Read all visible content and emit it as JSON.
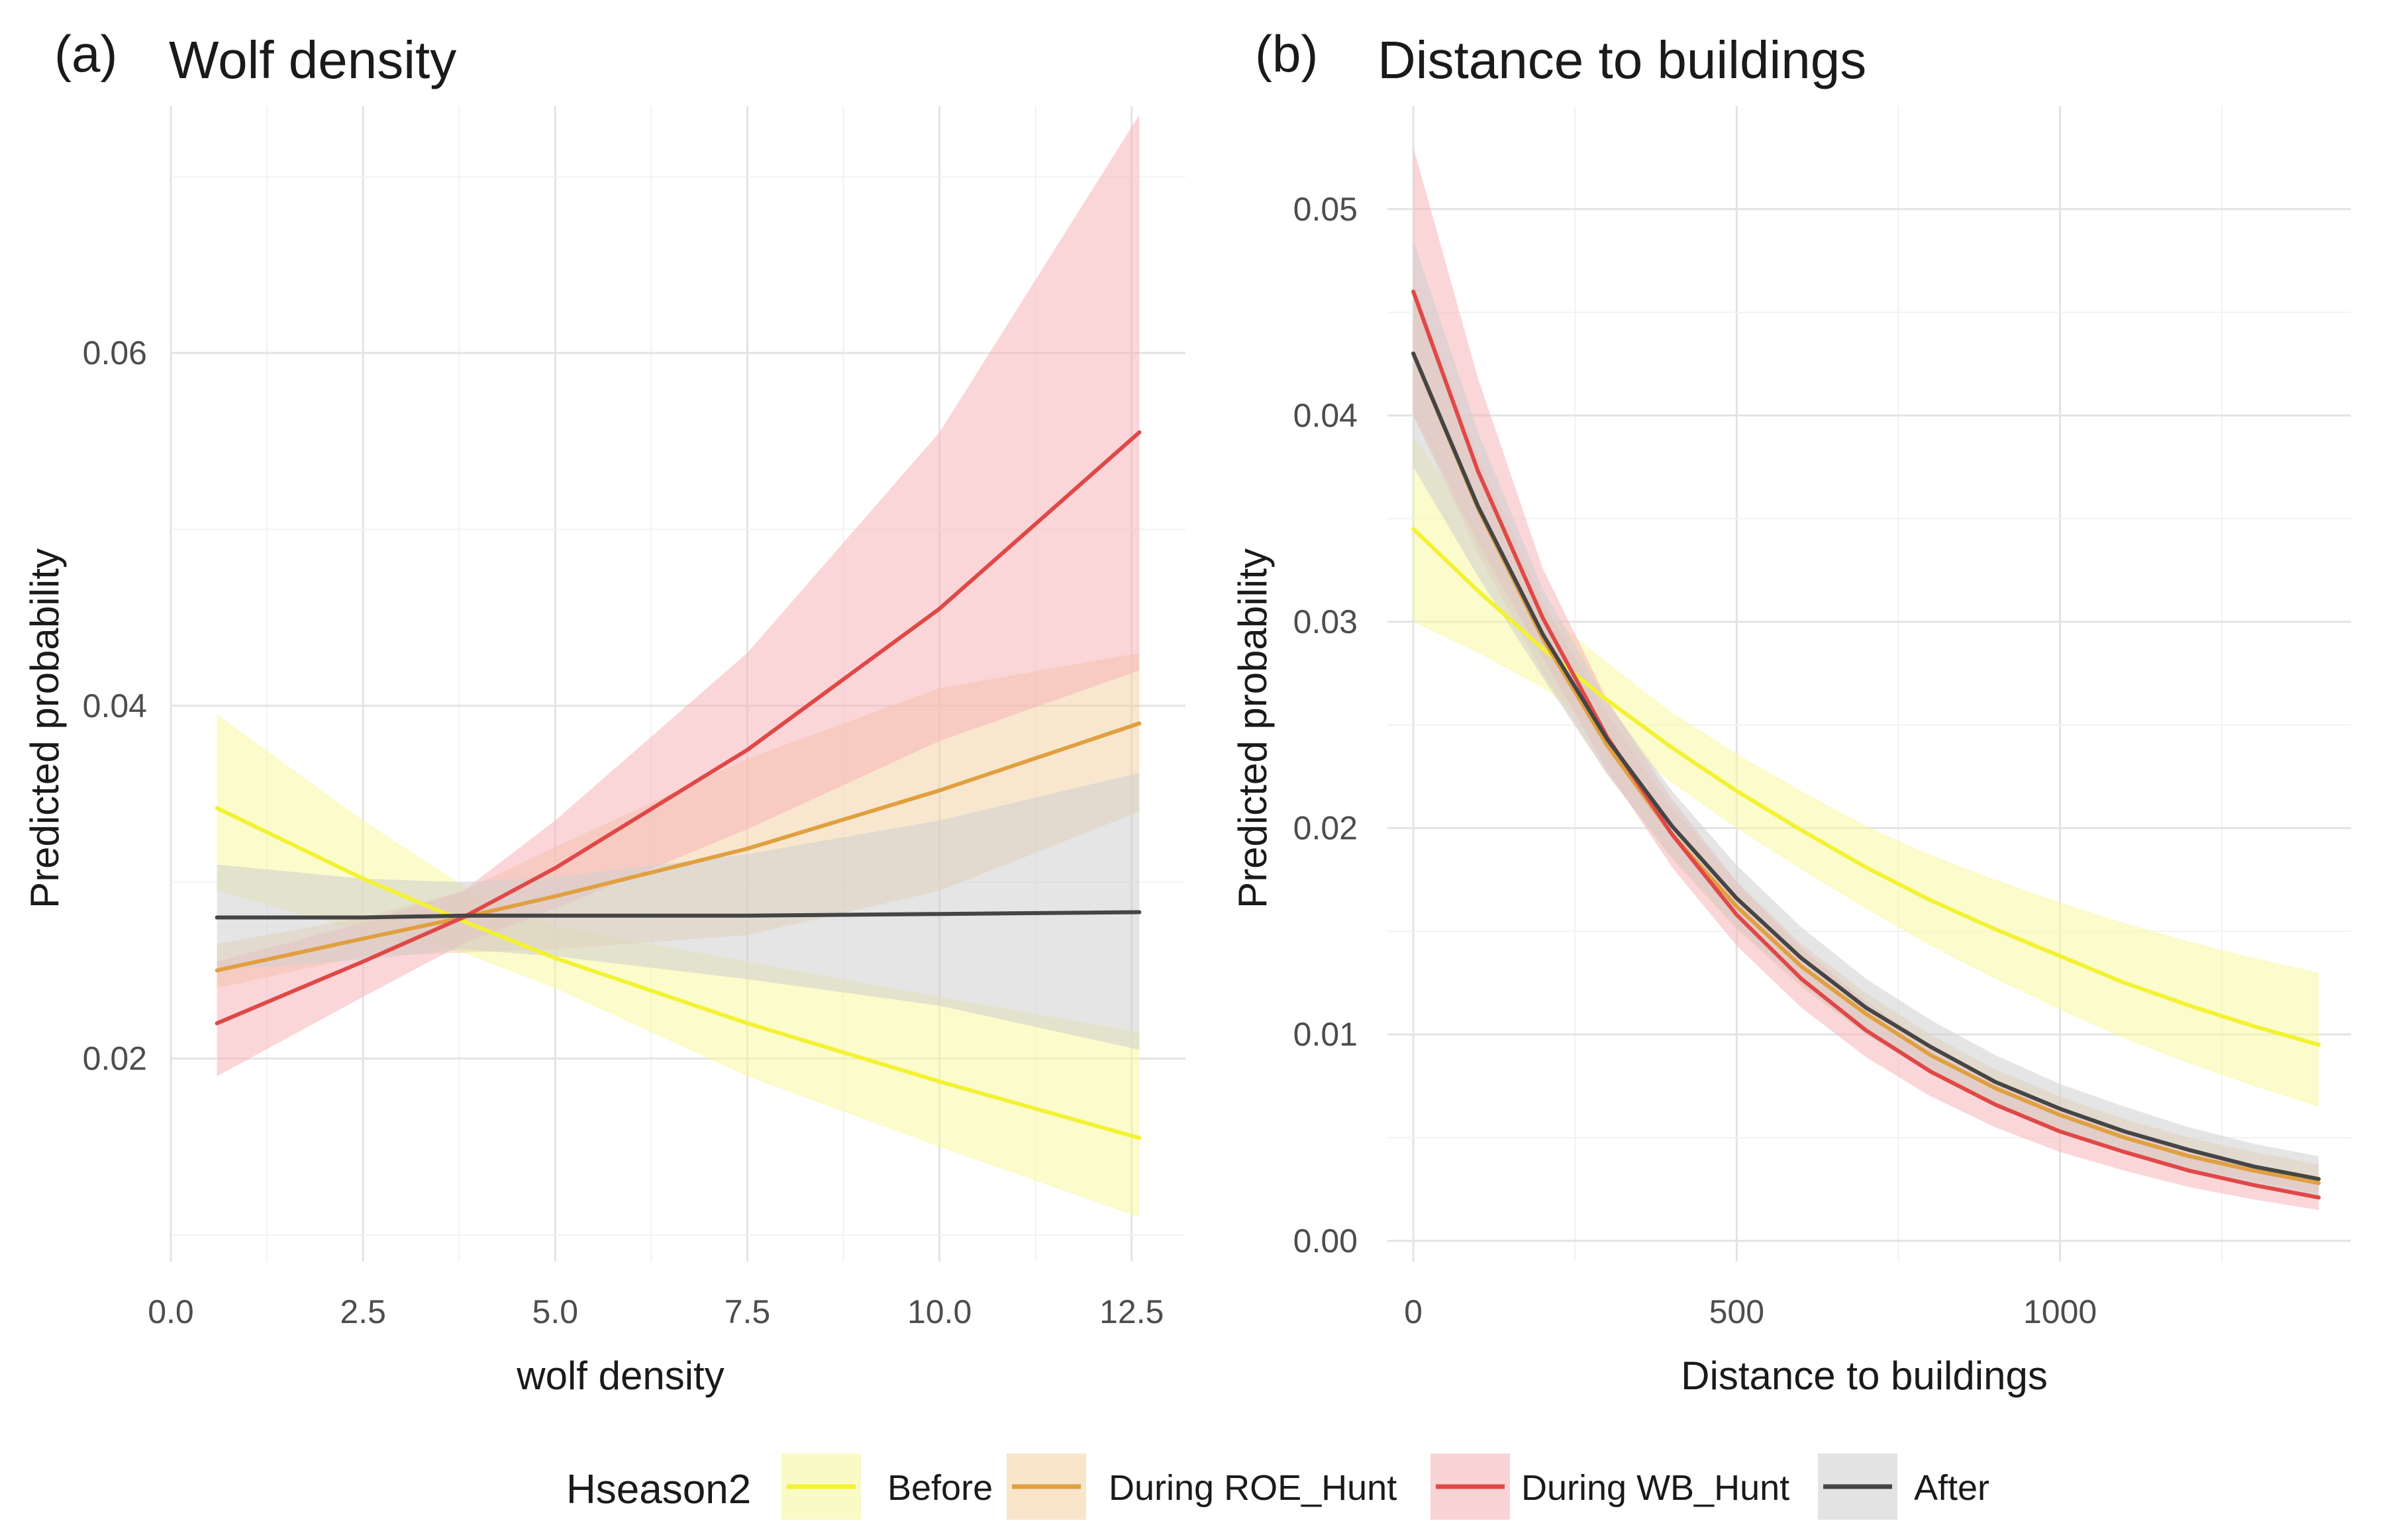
{
  "legend": {
    "title": "Hseason2",
    "items": [
      {
        "label": "Before",
        "color": "#f2f233",
        "fill": "#f7f7a0"
      },
      {
        "label": "During ROE_Hunt",
        "color": "#e0a040",
        "fill": "#f3d4a6"
      },
      {
        "label": "During WB_Hunt",
        "color": "#e04848",
        "fill": "#f7b5b8"
      },
      {
        "label": "After",
        "color": "#454545",
        "fill": "#d0d0d0"
      }
    ]
  },
  "chart_data": [
    {
      "type": "line",
      "panel_label": "(a)",
      "title": "Wolf density",
      "xlabel": "wolf density",
      "ylabel": "Predicted probability",
      "xlim": [
        0,
        13.2
      ],
      "ylim": [
        0.0085,
        0.074
      ],
      "xticks": [
        "0.0",
        "2.5",
        "5.0",
        "7.5",
        "10.0",
        "12.5"
      ],
      "yticks": [
        "0.02",
        "0.04",
        "0.06"
      ],
      "x": [
        0.6,
        2.5,
        3.8,
        5.0,
        7.5,
        10.0,
        12.6
      ],
      "series": [
        {
          "name": "Before",
          "values": [
            0.0342,
            0.0302,
            0.0278,
            0.0257,
            0.022,
            0.0187,
            0.0155
          ],
          "lower": [
            0.0295,
            0.0272,
            0.026,
            0.024,
            0.019,
            0.015,
            0.011
          ],
          "upper": [
            0.0395,
            0.0335,
            0.0298,
            0.0275,
            0.0255,
            0.0235,
            0.0215
          ]
        },
        {
          "name": "During ROE_Hunt",
          "values": [
            0.025,
            0.0268,
            0.028,
            0.0292,
            0.0319,
            0.0352,
            0.039
          ],
          "lower": [
            0.024,
            0.0258,
            0.026,
            0.0262,
            0.027,
            0.0295,
            0.034
          ],
          "upper": [
            0.0265,
            0.028,
            0.0295,
            0.032,
            0.037,
            0.041,
            0.043
          ]
        },
        {
          "name": "During WB_Hunt",
          "values": [
            0.022,
            0.0255,
            0.028,
            0.0308,
            0.0375,
            0.0455,
            0.0555
          ],
          "lower": [
            0.019,
            0.0235,
            0.0265,
            0.0285,
            0.033,
            0.038,
            0.042
          ],
          "upper": [
            0.0255,
            0.0277,
            0.0295,
            0.0335,
            0.043,
            0.0555,
            0.0735
          ]
        },
        {
          "name": "After",
          "values": [
            0.028,
            0.028,
            0.0281,
            0.0281,
            0.0281,
            0.0282,
            0.0283
          ],
          "lower": [
            0.025,
            0.0256,
            0.0262,
            0.0258,
            0.0245,
            0.023,
            0.0205
          ],
          "upper": [
            0.031,
            0.0302,
            0.03,
            0.0303,
            0.0316,
            0.0335,
            0.0362
          ]
        }
      ]
    },
    {
      "type": "line",
      "panel_label": "(b)",
      "title": "Distance to buildings",
      "xlabel": "Distance to buildings",
      "ylabel": "Predicted probability",
      "xlim": [
        -40,
        1450
      ],
      "ylim": [
        -0.001,
        0.055
      ],
      "xticks": [
        "0",
        "500",
        "1000"
      ],
      "yticks": [
        "0.00",
        "0.01",
        "0.02",
        "0.03",
        "0.04",
        "0.05"
      ],
      "x": [
        0,
        100,
        200,
        300,
        400,
        500,
        600,
        700,
        800,
        900,
        1000,
        1100,
        1200,
        1300,
        1400
      ],
      "series": [
        {
          "name": "Before",
          "values": [
            0.0345,
            0.0315,
            0.0287,
            0.0262,
            0.0239,
            0.0218,
            0.0199,
            0.0181,
            0.0165,
            0.0151,
            0.0138,
            0.0125,
            0.0114,
            0.0104,
            0.0095
          ],
          "lower": [
            0.03,
            0.0285,
            0.0268,
            0.0245,
            0.0222,
            0.02,
            0.018,
            0.0161,
            0.0143,
            0.0127,
            0.0112,
            0.0098,
            0.0086,
            0.0075,
            0.0065
          ],
          "upper": [
            0.039,
            0.0345,
            0.0306,
            0.028,
            0.0256,
            0.0236,
            0.0218,
            0.0201,
            0.0187,
            0.0175,
            0.0164,
            0.0154,
            0.0145,
            0.0137,
            0.013
          ]
        },
        {
          "name": "During ROE_Hunt",
          "values": [
            0.043,
            0.0355,
            0.0292,
            0.024,
            0.0197,
            0.0162,
            0.0133,
            0.011,
            0.009,
            0.0074,
            0.0061,
            0.005,
            0.0041,
            0.0034,
            0.0028
          ],
          "lower": [
            0.04,
            0.0333,
            0.0275,
            0.0226,
            0.0185,
            0.0151,
            0.0123,
            0.01,
            0.0082,
            0.0066,
            0.0054,
            0.0044,
            0.0035,
            0.0029,
            0.0023
          ],
          "upper": [
            0.0465,
            0.038,
            0.031,
            0.0255,
            0.021,
            0.0174,
            0.0144,
            0.012,
            0.01,
            0.0083,
            0.007,
            0.0059,
            0.005,
            0.0043,
            0.0037
          ]
        },
        {
          "name": "During WB_Hunt",
          "values": [
            0.046,
            0.0373,
            0.0302,
            0.0244,
            0.0197,
            0.0158,
            0.0127,
            0.0102,
            0.0082,
            0.0066,
            0.0053,
            0.0043,
            0.0034,
            0.0027,
            0.0021
          ],
          "lower": [
            0.04,
            0.0338,
            0.0283,
            0.0228,
            0.0181,
            0.0143,
            0.0113,
            0.0089,
            0.007,
            0.0055,
            0.0043,
            0.0034,
            0.0026,
            0.002,
            0.0015
          ],
          "upper": [
            0.053,
            0.0418,
            0.0326,
            0.0262,
            0.0214,
            0.0174,
            0.0142,
            0.0116,
            0.0095,
            0.0078,
            0.0064,
            0.0053,
            0.0044,
            0.0036,
            0.003
          ]
        },
        {
          "name": "After",
          "values": [
            0.043,
            0.0356,
            0.0294,
            0.0243,
            0.0201,
            0.0166,
            0.0137,
            0.0113,
            0.0094,
            0.0077,
            0.0064,
            0.0053,
            0.0044,
            0.0036,
            0.003
          ],
          "lower": [
            0.0375,
            0.0322,
            0.0273,
            0.0226,
            0.0186,
            0.0152,
            0.0124,
            0.01,
            0.0081,
            0.0065,
            0.0052,
            0.0042,
            0.0033,
            0.0026,
            0.002
          ],
          "upper": [
            0.0485,
            0.0392,
            0.0316,
            0.0261,
            0.0218,
            0.0182,
            0.0152,
            0.0127,
            0.0107,
            0.009,
            0.0076,
            0.0065,
            0.0055,
            0.0047,
            0.0041
          ]
        }
      ]
    }
  ]
}
